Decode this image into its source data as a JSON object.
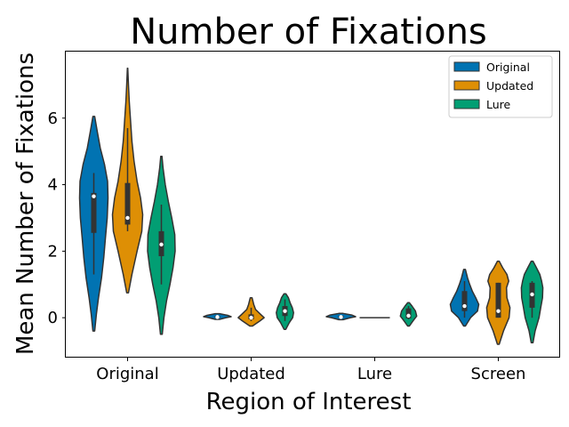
{
  "chart_data": {
    "type": "violin",
    "title": "Number of Fixations",
    "xlabel": "Region of Interest",
    "ylabel": "Mean Number of Fixations",
    "categories": [
      "Original",
      "Updated",
      "Lure",
      "Screen"
    ],
    "ylim": [
      -1.2,
      8.0
    ],
    "yticks": [
      0,
      2,
      4,
      6
    ],
    "grid": false,
    "legend": {
      "position": "top-right",
      "entries": [
        {
          "name": "Original",
          "color": "#0173b2"
        },
        {
          "name": "Updated",
          "color": "#de8f05"
        },
        {
          "name": "Lure",
          "color": "#029e73"
        }
      ]
    },
    "series": [
      {
        "name": "Original",
        "color": "#0173b2",
        "groups": [
          {
            "category": "Original",
            "min": -0.4,
            "max": 6.05,
            "q1": 2.55,
            "median": 3.65,
            "q3": 3.75,
            "whisker_low": 1.3,
            "whisker_high": 4.35,
            "density": [
              [
                -0.4,
                0.02
              ],
              [
                0.1,
                0.06
              ],
              [
                0.6,
                0.11
              ],
              [
                1.2,
                0.18
              ],
              [
                1.8,
                0.23
              ],
              [
                2.4,
                0.27
              ],
              [
                3.0,
                0.31
              ],
              [
                3.6,
                0.33
              ],
              [
                4.1,
                0.32
              ],
              [
                4.6,
                0.25
              ],
              [
                5.1,
                0.15
              ],
              [
                5.6,
                0.08
              ],
              [
                6.05,
                0.02
              ]
            ]
          },
          {
            "category": "Updated",
            "min": -0.05,
            "max": 0.12,
            "q1": 0.0,
            "median": 0.02,
            "q3": 0.05,
            "whisker_low": 0.0,
            "whisker_high": 0.06,
            "density": [
              [
                -0.05,
                0.05
              ],
              [
                0.0,
                0.2
              ],
              [
                0.03,
                0.32
              ],
              [
                0.07,
                0.24
              ],
              [
                0.12,
                0.05
              ]
            ]
          },
          {
            "category": "Lure",
            "min": -0.06,
            "max": 0.13,
            "q1": 0.0,
            "median": 0.02,
            "q3": 0.06,
            "whisker_low": 0.0,
            "whisker_high": 0.07,
            "density": [
              [
                -0.06,
                0.05
              ],
              [
                0.0,
                0.22
              ],
              [
                0.03,
                0.34
              ],
              [
                0.08,
                0.25
              ],
              [
                0.13,
                0.05
              ]
            ]
          },
          {
            "category": "Screen",
            "min": -0.25,
            "max": 1.45,
            "q1": 0.2,
            "median": 0.35,
            "q3": 0.8,
            "whisker_low": 0.0,
            "whisker_high": 1.1,
            "density": [
              [
                -0.25,
                0.02
              ],
              [
                0.0,
                0.14
              ],
              [
                0.2,
                0.3
              ],
              [
                0.4,
                0.33
              ],
              [
                0.6,
                0.26
              ],
              [
                0.8,
                0.18
              ],
              [
                1.0,
                0.12
              ],
              [
                1.2,
                0.07
              ],
              [
                1.45,
                0.02
              ]
            ]
          }
        ]
      },
      {
        "name": "Updated",
        "color": "#de8f05",
        "groups": [
          {
            "category": "Original",
            "min": 0.75,
            "max": 7.5,
            "q1": 2.8,
            "median": 3.0,
            "q3": 4.05,
            "whisker_low": 2.6,
            "whisker_high": 5.7,
            "density": [
              [
                0.75,
                0.02
              ],
              [
                1.3,
                0.1
              ],
              [
                2.0,
                0.22
              ],
              [
                2.6,
                0.33
              ],
              [
                3.1,
                0.35
              ],
              [
                3.6,
                0.3
              ],
              [
                4.1,
                0.22
              ],
              [
                4.7,
                0.15
              ],
              [
                5.3,
                0.1
              ],
              [
                5.9,
                0.07
              ],
              [
                6.5,
                0.04
              ],
              [
                7.0,
                0.02
              ],
              [
                7.5,
                0.005
              ]
            ]
          },
          {
            "category": "Updated",
            "min": -0.25,
            "max": 0.6,
            "q1": -0.05,
            "median": 0.0,
            "q3": 0.1,
            "whisker_low": -0.1,
            "whisker_high": 0.3,
            "density": [
              [
                -0.25,
                0.03
              ],
              [
                -0.1,
                0.2
              ],
              [
                0.0,
                0.3
              ],
              [
                0.1,
                0.22
              ],
              [
                0.25,
                0.1
              ],
              [
                0.4,
                0.06
              ],
              [
                0.6,
                0.02
              ]
            ]
          },
          {
            "category": "Lure",
            "min": 0.0,
            "max": 0.0,
            "q1": 0.0,
            "median": 0.0,
            "q3": 0.0,
            "whisker_low": 0.0,
            "whisker_high": 0.0,
            "density": []
          },
          {
            "category": "Screen",
            "min": -0.8,
            "max": 1.7,
            "q1": 0.0,
            "median": 0.2,
            "q3": 1.05,
            "whisker_low": 0.0,
            "whisker_high": 1.05,
            "density": [
              [
                -0.8,
                0.02
              ],
              [
                -0.4,
                0.12
              ],
              [
                0.0,
                0.25
              ],
              [
                0.3,
                0.27
              ],
              [
                0.6,
                0.2
              ],
              [
                0.9,
                0.19
              ],
              [
                1.1,
                0.24
              ],
              [
                1.3,
                0.2
              ],
              [
                1.5,
                0.1
              ],
              [
                1.7,
                0.02
              ]
            ]
          }
        ]
      },
      {
        "name": "Lure",
        "color": "#029e73",
        "groups": [
          {
            "category": "Original",
            "min": -0.5,
            "max": 4.85,
            "q1": 1.85,
            "median": 2.2,
            "q3": 2.6,
            "whisker_low": 1.0,
            "whisker_high": 3.4,
            "density": [
              [
                -0.5,
                0.02
              ],
              [
                0.0,
                0.06
              ],
              [
                0.5,
                0.12
              ],
              [
                1.0,
                0.2
              ],
              [
                1.5,
                0.27
              ],
              [
                2.0,
                0.32
              ],
              [
                2.5,
                0.31
              ],
              [
                3.0,
                0.24
              ],
              [
                3.5,
                0.16
              ],
              [
                4.0,
                0.09
              ],
              [
                4.5,
                0.04
              ],
              [
                4.85,
                0.015
              ]
            ]
          },
          {
            "category": "Updated",
            "min": -0.35,
            "max": 0.72,
            "q1": 0.05,
            "median": 0.2,
            "q3": 0.35,
            "whisker_low": -0.1,
            "whisker_high": 0.55,
            "density": [
              [
                -0.35,
                0.02
              ],
              [
                -0.15,
                0.1
              ],
              [
                0.0,
                0.18
              ],
              [
                0.15,
                0.2
              ],
              [
                0.3,
                0.17
              ],
              [
                0.45,
                0.12
              ],
              [
                0.6,
                0.08
              ],
              [
                0.72,
                0.02
              ]
            ]
          },
          {
            "category": "Lure",
            "min": -0.25,
            "max": 0.45,
            "q1": -0.02,
            "median": 0.06,
            "q3": 0.28,
            "whisker_low": -0.05,
            "whisker_high": 0.35,
            "density": [
              [
                -0.25,
                0.02
              ],
              [
                -0.1,
                0.1
              ],
              [
                0.05,
                0.19
              ],
              [
                0.2,
                0.16
              ],
              [
                0.35,
                0.08
              ],
              [
                0.45,
                0.02
              ]
            ]
          },
          {
            "category": "Screen",
            "min": -0.75,
            "max": 1.7,
            "q1": 0.3,
            "median": 0.7,
            "q3": 1.05,
            "whisker_low": 0.0,
            "whisker_high": 1.1,
            "density": [
              [
                -0.75,
                0.02
              ],
              [
                -0.4,
                0.07
              ],
              [
                0.0,
                0.16
              ],
              [
                0.3,
                0.2
              ],
              [
                0.6,
                0.24
              ],
              [
                0.9,
                0.25
              ],
              [
                1.1,
                0.22
              ],
              [
                1.3,
                0.18
              ],
              [
                1.5,
                0.1
              ],
              [
                1.7,
                0.02
              ]
            ]
          }
        ]
      }
    ]
  }
}
